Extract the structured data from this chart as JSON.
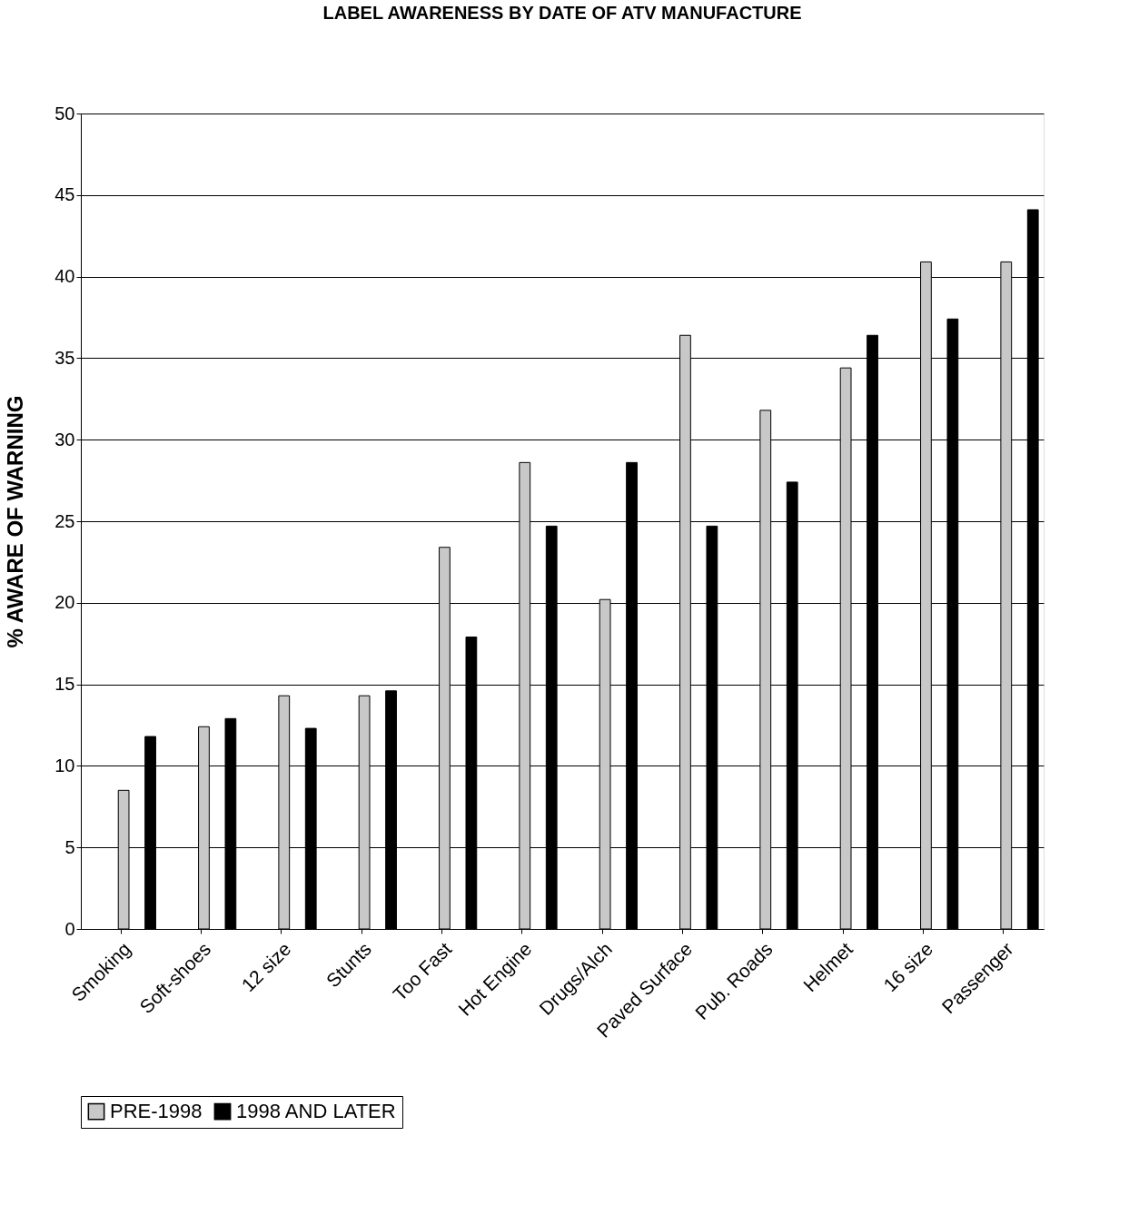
{
  "chart_data": {
    "type": "bar",
    "title": "LABEL AWARENESS BY DATE OF ATV MANUFACTURE",
    "ylabel": "% AWARE OF WARNING",
    "categories": [
      "Smoking",
      "Soft-shoes",
      "12 size",
      "Stunts",
      "Too Fast",
      "Hot Engine",
      "Drugs/Alch",
      "Paved Surface",
      "Pub. Roads",
      "Helmet",
      "16 size",
      "Passenger"
    ],
    "series": [
      {
        "name": "PRE-1998",
        "color": "#c8c8c8",
        "values": [
          8.5,
          12.4,
          14.3,
          14.3,
          23.4,
          28.6,
          20.2,
          36.4,
          31.8,
          34.4,
          40.9,
          40.9
        ]
      },
      {
        "name": "1998 AND LATER",
        "color": "#000000",
        "values": [
          11.8,
          12.9,
          12.3,
          14.6,
          17.9,
          24.7,
          28.6,
          24.7,
          27.4,
          36.4,
          37.4,
          44.1
        ]
      }
    ],
    "ylim": [
      0,
      50
    ],
    "yticks": [
      0,
      5,
      10,
      15,
      20,
      25,
      30,
      35,
      40,
      45,
      50
    ],
    "grid": "y",
    "legend": "bottom"
  }
}
